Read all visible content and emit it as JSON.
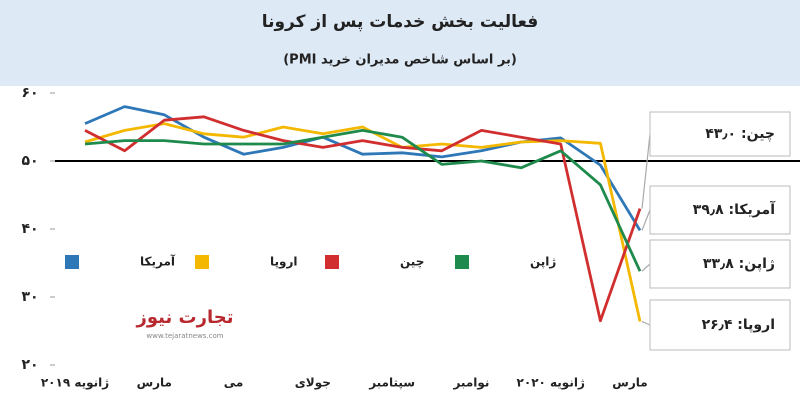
{
  "chart_data": {
    "type": "line",
    "title": "فعالیت بخش خدمات پس از کرونا",
    "subtitle": "(بر اساس شاخص مدیران خرید PMI)",
    "categories": [
      "ژانویه ۲۰۱۹",
      null,
      "مارس",
      null,
      "می",
      null,
      "جولای",
      null,
      "سپتامبر",
      null,
      "نوامبر",
      null,
      "ژانویه ۲۰۲۰",
      null,
      "مارس"
    ],
    "series": [
      {
        "name": "آمریکا",
        "color": "#2f78b8",
        "values": [
          55.5,
          58.0,
          56.8,
          53.5,
          51.0,
          52.0,
          53.5,
          51.0,
          51.2,
          50.6,
          51.5,
          52.8,
          53.4,
          49.4,
          39.8
        ],
        "value_labels": [
          null,
          null,
          null,
          null,
          null,
          null,
          null,
          null,
          null,
          null,
          null,
          null,
          null,
          null,
          "۳۹٫۸"
        ]
      },
      {
        "name": "اروپا",
        "color": "#f4b800",
        "values": [
          52.8,
          54.5,
          55.5,
          54.0,
          53.5,
          55.0,
          54.0,
          55.0,
          52.0,
          52.5,
          52.0,
          52.8,
          53.0,
          52.6,
          26.4
        ],
        "value_labels": [
          null,
          null,
          null,
          null,
          null,
          null,
          null,
          null,
          null,
          null,
          null,
          null,
          null,
          null,
          "۲۶٫۴"
        ]
      },
      {
        "name": "چین",
        "color": "#d12f2f",
        "values": [
          54.5,
          51.5,
          56.0,
          56.5,
          54.5,
          53.0,
          52.0,
          53.0,
          52.0,
          51.5,
          54.5,
          53.5,
          52.5,
          26.5,
          43.0
        ],
        "value_labels": [
          null,
          null,
          null,
          null,
          null,
          null,
          null,
          null,
          null,
          null,
          null,
          null,
          null,
          null,
          "۴۳٫۰"
        ]
      },
      {
        "name": "ژاپن",
        "color": "#1e8a4c",
        "values": [
          52.5,
          53.0,
          53.0,
          52.5,
          52.5,
          52.5,
          53.5,
          54.5,
          53.5,
          49.5,
          50.0,
          49.0,
          51.5,
          46.5,
          33.8
        ],
        "value_labels": [
          null,
          null,
          null,
          null,
          null,
          null,
          null,
          null,
          null,
          null,
          null,
          null,
          null,
          null,
          "۳۳٫۸"
        ]
      }
    ],
    "ylim": [
      20,
      60
    ],
    "yticks": [
      {
        "value": 20,
        "label": "۲۰"
      },
      {
        "value": 30,
        "label": "۳۰"
      },
      {
        "value": 40,
        "label": "۴۰"
      },
      {
        "value": 50,
        "label": "۵۰"
      },
      {
        "value": 60,
        "label": "۶۰"
      }
    ],
    "reference_line": 50,
    "grid": false,
    "watermark": {
      "text": "تجارت نیوز",
      "url": "www.tejaratnews.com"
    }
  }
}
